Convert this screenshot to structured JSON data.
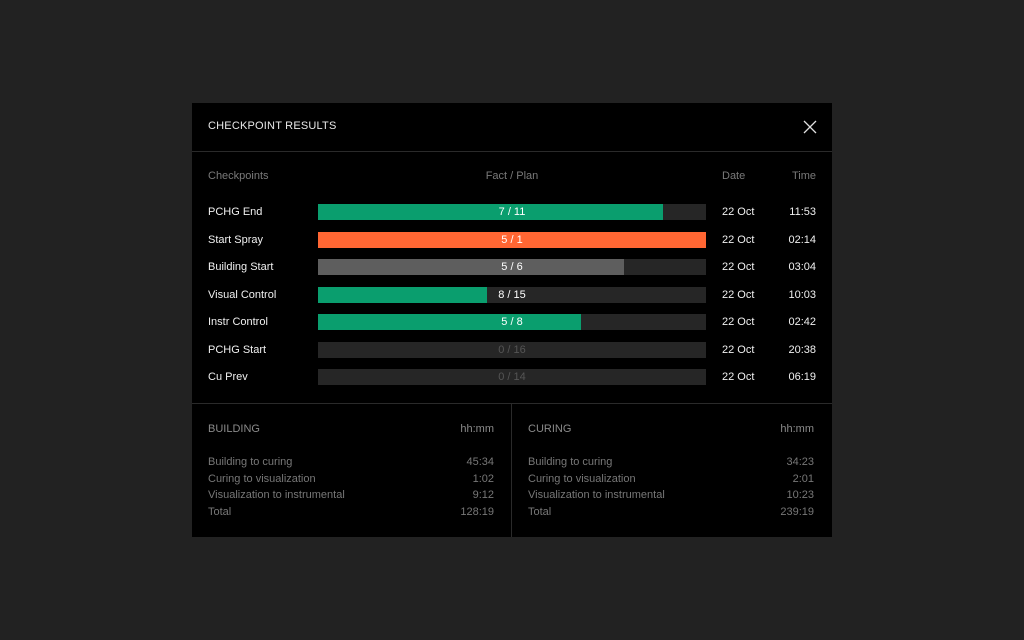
{
  "dialog": {
    "title": "CHECKPOINT RESULTS",
    "close_icon": "close-icon"
  },
  "table": {
    "headers": {
      "checkpoints": "Checkpoints",
      "fact_plan": "Fact / Plan",
      "date": "Date",
      "time": "Time"
    },
    "rows": [
      {
        "name": "PCHG End",
        "label": "7 / 11",
        "fact": 7,
        "plan": 11,
        "fill_fraction": 0.89,
        "status": "ok",
        "color": "#0a9e6e",
        "date": "22 Oct",
        "time": "11:53"
      },
      {
        "name": "Start Spray",
        "label": "5 / 1",
        "fact": 5,
        "plan": 1,
        "fill_fraction": 1.0,
        "status": "over",
        "color": "#ff6633",
        "date": "22 Oct",
        "time": "02:14"
      },
      {
        "name": "Building Start",
        "label": "5 / 6",
        "fact": 5,
        "plan": 6,
        "fill_fraction": 0.788,
        "status": "neutral",
        "color": "#5e5e5e",
        "date": "22 Oct",
        "time": "03:04"
      },
      {
        "name": "Visual Control",
        "label": "8 / 15",
        "fact": 8,
        "plan": 15,
        "fill_fraction": 0.435,
        "status": "ok",
        "color": "#0a9e6e",
        "date": "22 Oct",
        "time": "10:03"
      },
      {
        "name": "Instr Control",
        "label": "5 / 8",
        "fact": 5,
        "plan": 8,
        "fill_fraction": 0.677,
        "status": "ok",
        "color": "#0a9e6e",
        "date": "22 Oct",
        "time": "02:42"
      },
      {
        "name": "PCHG Start",
        "label": "0 / 16",
        "fact": 0,
        "plan": 16,
        "fill_fraction": 0,
        "status": "empty",
        "color": "#262626",
        "date": "22 Oct",
        "time": "20:38"
      },
      {
        "name": "Cu Prev",
        "label": "0 / 14",
        "fact": 0,
        "plan": 14,
        "fill_fraction": 0,
        "status": "empty",
        "color": "#262626",
        "date": "22 Oct",
        "time": "06:19"
      }
    ]
  },
  "building": {
    "title": "BUILDING",
    "unit": "hh:mm",
    "rows": [
      {
        "label": "Building to curing",
        "value": "45:34"
      },
      {
        "label": "Curing to visualization",
        "value": "1:02"
      },
      {
        "label": "Visualization to instrumental",
        "value": "9:12"
      },
      {
        "label": "Total",
        "value": "128:19"
      }
    ]
  },
  "curing": {
    "title": "CURING",
    "unit": "hh:mm",
    "rows": [
      {
        "label": "Building to curing",
        "value": "34:23"
      },
      {
        "label": "Curing to visualization",
        "value": "2:01"
      },
      {
        "label": "Visualization to instrumental",
        "value": "10:23"
      },
      {
        "label": "Total",
        "value": "239:19"
      }
    ]
  }
}
